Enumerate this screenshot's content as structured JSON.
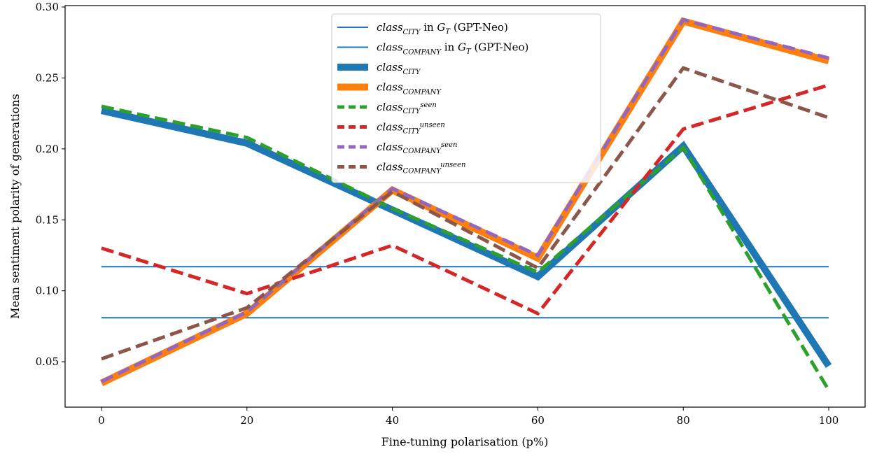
{
  "chart_data": {
    "type": "line",
    "title": "",
    "xlabel": "Fine-tuning polarisation (p%)",
    "ylabel": "Mean sentiment polarity of generations",
    "x": [
      0,
      20,
      40,
      60,
      80,
      100
    ],
    "x_ticks": [
      "0",
      "20",
      "40",
      "60",
      "80",
      "100"
    ],
    "y_ticks": [
      "0.05",
      "0.10",
      "0.15",
      "0.20",
      "0.25",
      "0.30"
    ],
    "xlim": [
      -5,
      105
    ],
    "ylim": [
      0.018,
      0.301
    ],
    "grid": false,
    "legend_position": "upper-center",
    "reference_lines": [
      {
        "base": "class",
        "sub": "CITY",
        "suffix": " in ",
        "g": "G",
        "gsub": "T",
        "tail": " (GPT-Neo)",
        "value": 0.081,
        "color": "#1f77b4"
      },
      {
        "base": "class",
        "sub": "COMPANY",
        "suffix": " in ",
        "g": "G",
        "gsub": "T",
        "tail": " (GPT-Neo)",
        "value": 0.117,
        "color": "#1f77b4"
      }
    ],
    "series": [
      {
        "base": "class",
        "sub": "CITY",
        "sup": "",
        "color": "#1f77b4",
        "style": "solid-thick",
        "values": [
          0.227,
          0.204,
          0.157,
          0.11,
          0.202,
          0.047
        ]
      },
      {
        "base": "class",
        "sub": "COMPANY",
        "sup": "",
        "color": "#ff7f0e",
        "style": "solid-thick",
        "values": [
          0.035,
          0.084,
          0.171,
          0.123,
          0.29,
          0.262
        ]
      },
      {
        "base": "class",
        "sub": "CITY",
        "sup": "seen",
        "color": "#2ca02c",
        "style": "dashed",
        "values": [
          0.23,
          0.208,
          0.158,
          0.113,
          0.201,
          0.03
        ]
      },
      {
        "base": "class",
        "sub": "CITY",
        "sup": "unseen",
        "color": "#d62728",
        "style": "dashed",
        "values": [
          0.13,
          0.098,
          0.132,
          0.084,
          0.214,
          0.245
        ]
      },
      {
        "base": "class",
        "sub": "COMPANY",
        "sup": "seen",
        "color": "#9467bd",
        "style": "dashed",
        "values": [
          0.036,
          0.085,
          0.172,
          0.125,
          0.291,
          0.264
        ]
      },
      {
        "base": "class",
        "sub": "COMPANY",
        "sup": "unseen",
        "color": "#8c564b",
        "style": "dashed",
        "values": [
          0.052,
          0.088,
          0.17,
          0.116,
          0.257,
          0.222
        ]
      }
    ]
  }
}
